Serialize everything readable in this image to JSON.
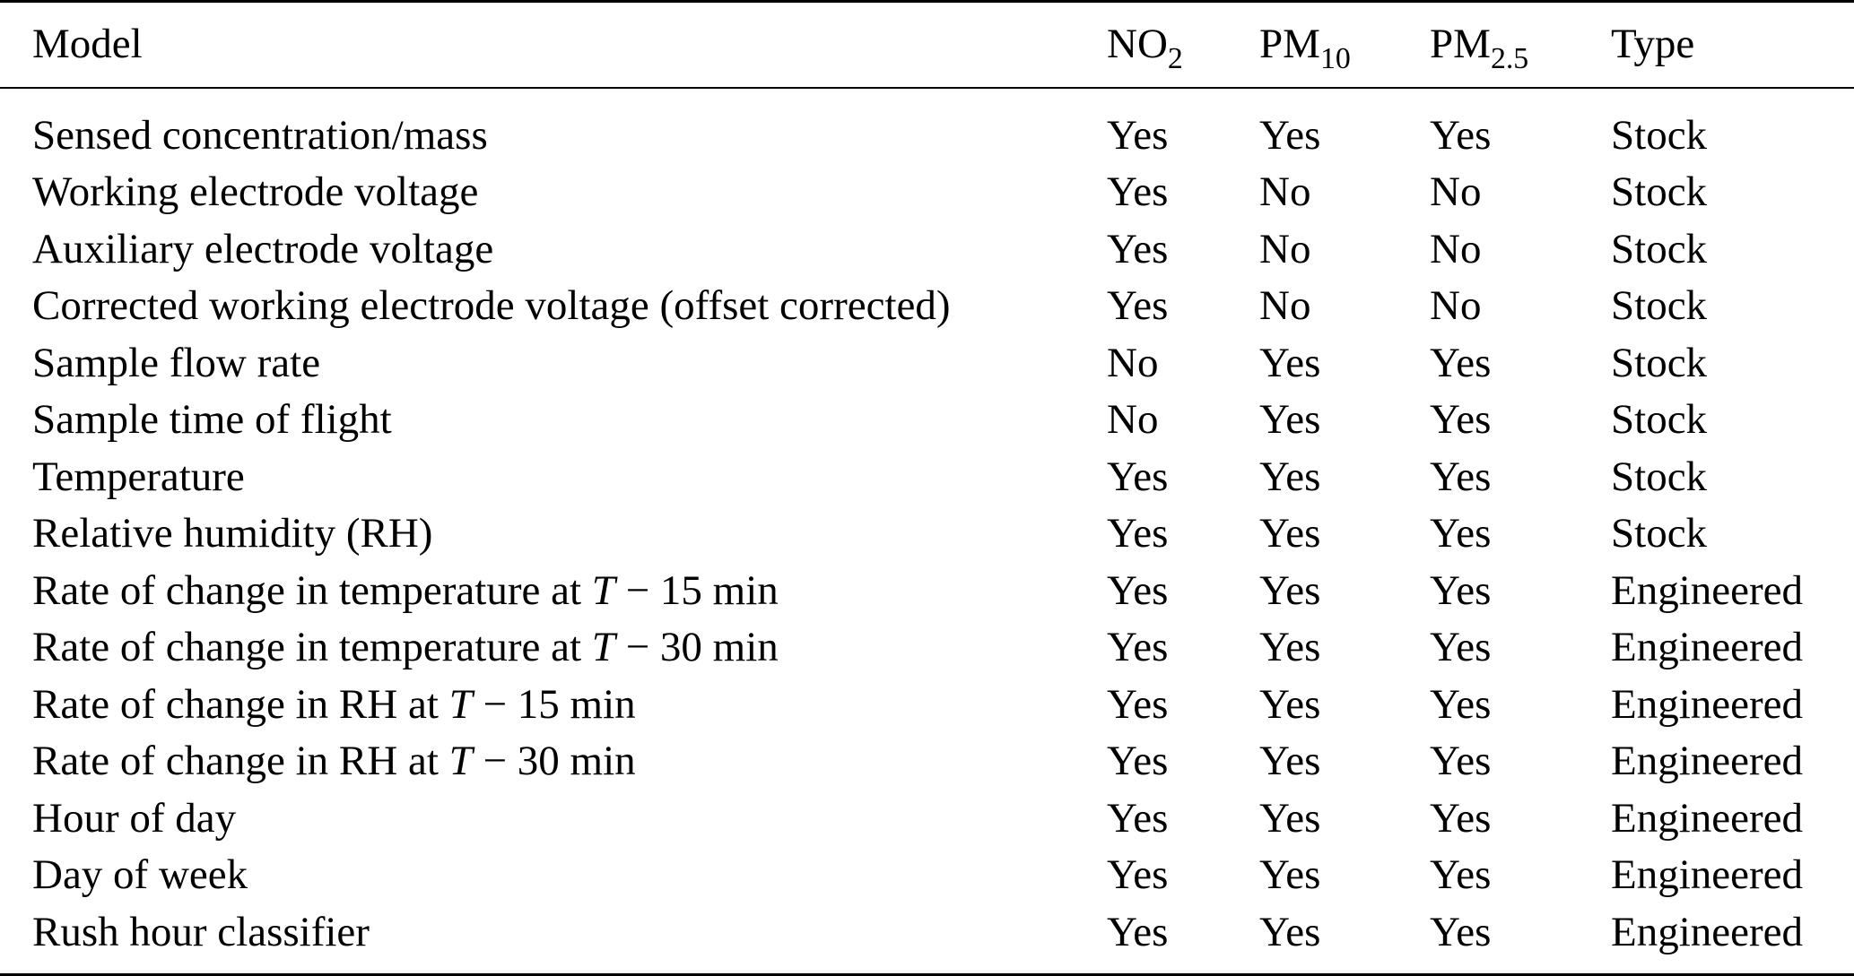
{
  "table": {
    "headers": {
      "model": "Model",
      "no2_base": "NO",
      "no2_sub": "2",
      "pm10_base": "PM",
      "pm10_sub": "10",
      "pm25_base": "PM",
      "pm25_sub": "2.5",
      "type": "Type"
    },
    "rows": [
      {
        "model_a": "Sensed concentration/mass",
        "model_t": "",
        "model_b": "",
        "no2": "Yes",
        "pm10": "Yes",
        "pm25": "Yes",
        "type": "Stock"
      },
      {
        "model_a": "Working electrode voltage",
        "model_t": "",
        "model_b": "",
        "no2": "Yes",
        "pm10": "No",
        "pm25": "No",
        "type": "Stock"
      },
      {
        "model_a": "Auxiliary electrode voltage",
        "model_t": "",
        "model_b": "",
        "no2": "Yes",
        "pm10": "No",
        "pm25": "No",
        "type": "Stock"
      },
      {
        "model_a": "Corrected working electrode voltage (offset corrected)",
        "model_t": "",
        "model_b": "",
        "no2": "Yes",
        "pm10": "No",
        "pm25": "No",
        "type": "Stock"
      },
      {
        "model_a": "Sample flow rate",
        "model_t": "",
        "model_b": "",
        "no2": "No",
        "pm10": "Yes",
        "pm25": "Yes",
        "type": "Stock"
      },
      {
        "model_a": "Sample time of flight",
        "model_t": "",
        "model_b": "",
        "no2": "No",
        "pm10": "Yes",
        "pm25": "Yes",
        "type": "Stock"
      },
      {
        "model_a": "Temperature",
        "model_t": "",
        "model_b": "",
        "no2": "Yes",
        "pm10": "Yes",
        "pm25": "Yes",
        "type": "Stock"
      },
      {
        "model_a": "Relative humidity (RH)",
        "model_t": "",
        "model_b": "",
        "no2": "Yes",
        "pm10": "Yes",
        "pm25": "Yes",
        "type": "Stock"
      },
      {
        "model_a": "Rate of change in temperature at ",
        "model_t": "T",
        "model_b": " − 15 min",
        "no2": "Yes",
        "pm10": "Yes",
        "pm25": "Yes",
        "type": "Engineered"
      },
      {
        "model_a": "Rate of change in temperature at ",
        "model_t": "T",
        "model_b": " − 30 min",
        "no2": "Yes",
        "pm10": "Yes",
        "pm25": "Yes",
        "type": "Engineered"
      },
      {
        "model_a": "Rate of change in RH at ",
        "model_t": "T",
        "model_b": " − 15 min",
        "no2": "Yes",
        "pm10": "Yes",
        "pm25": "Yes",
        "type": "Engineered"
      },
      {
        "model_a": "Rate of change in RH at ",
        "model_t": "T",
        "model_b": " − 30 min",
        "no2": "Yes",
        "pm10": "Yes",
        "pm25": "Yes",
        "type": "Engineered"
      },
      {
        "model_a": "Hour of day",
        "model_t": "",
        "model_b": "",
        "no2": "Yes",
        "pm10": "Yes",
        "pm25": "Yes",
        "type": "Engineered"
      },
      {
        "model_a": "Day of week",
        "model_t": "",
        "model_b": "",
        "no2": "Yes",
        "pm10": "Yes",
        "pm25": "Yes",
        "type": "Engineered"
      },
      {
        "model_a": "Rush hour classifier",
        "model_t": "",
        "model_b": "",
        "no2": "Yes",
        "pm10": "Yes",
        "pm25": "Yes",
        "type": "Engineered"
      }
    ]
  }
}
